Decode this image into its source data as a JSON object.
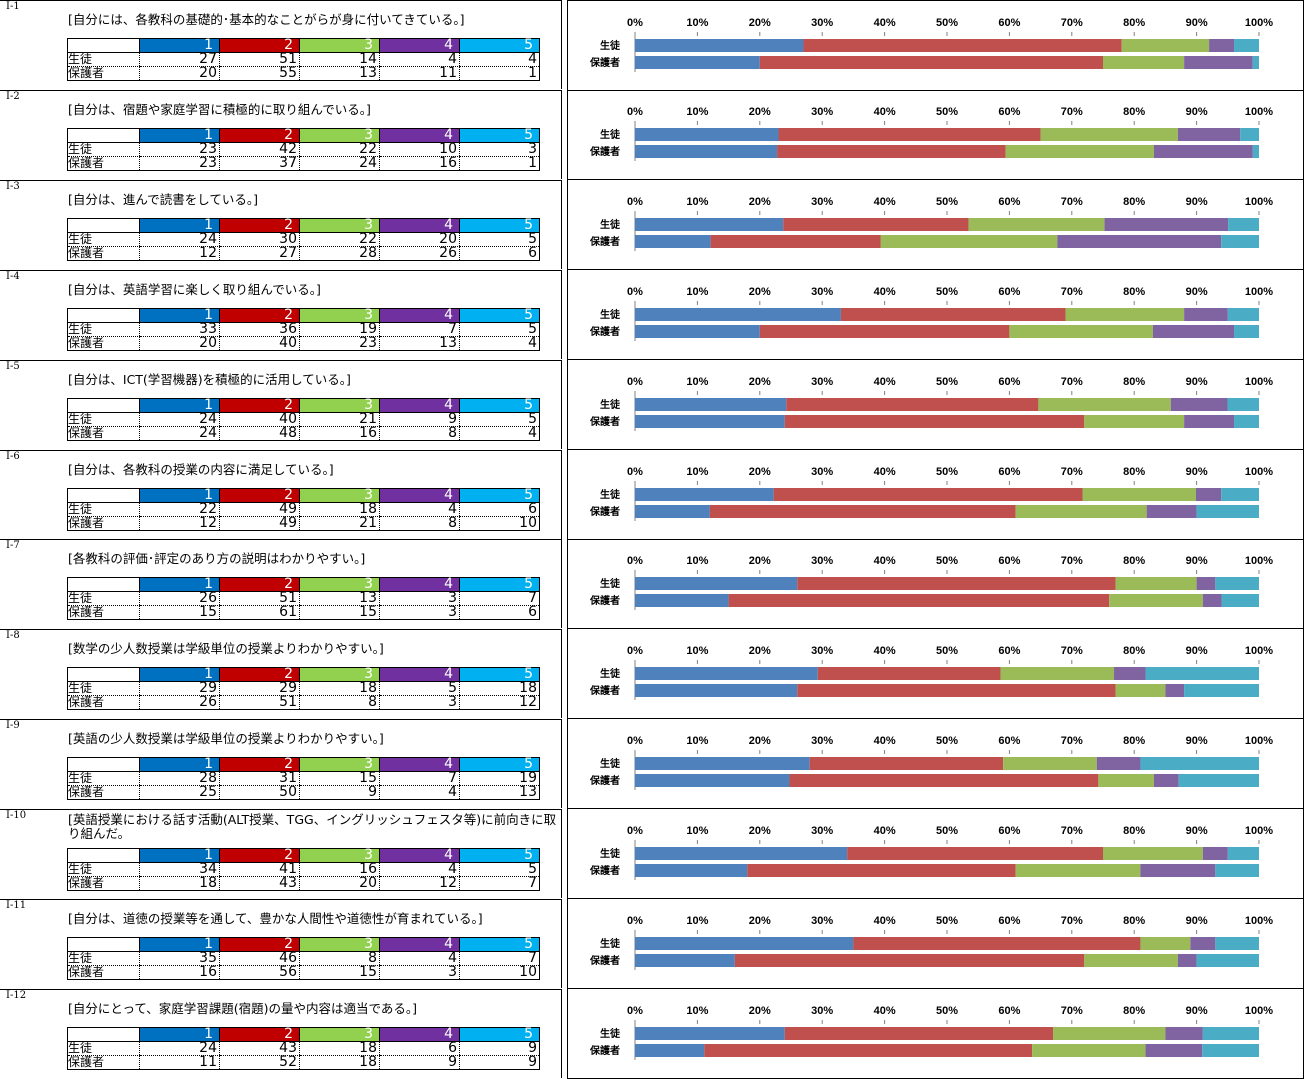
{
  "colors": {
    "c1": "#0070c0",
    "c2": "#c00000",
    "c3": "#92d050",
    "c4": "#7030a0",
    "c5": "#00b0f0",
    "bar1": "#4f81bd",
    "bar2": "#c0504d",
    "bar3": "#9bbb59",
    "bar4": "#8064a2",
    "bar5": "#4bacc6"
  },
  "header_numbers": [
    "1",
    "2",
    "3",
    "4",
    "5"
  ],
  "row_labels": [
    "生徒",
    "保護者"
  ],
  "questions": [
    {
      "id": "Ⅰ-1",
      "text": "[自分には、各教科の基礎的･基本的なことがらが身に付いてきている。]",
      "student": [
        27,
        51,
        14,
        4,
        4
      ],
      "parent": [
        20,
        55,
        13,
        11,
        1
      ]
    },
    {
      "id": "Ⅰ-2",
      "text": "[自分は、宿題や家庭学習に積極的に取り組んでいる。]",
      "student": [
        23,
        42,
        22,
        10,
        3
      ],
      "parent": [
        23,
        37,
        24,
        16,
        1
      ]
    },
    {
      "id": "Ⅰ-3",
      "text": "[自分は、進んで読書をしている。]",
      "student": [
        24,
        30,
        22,
        20,
        5
      ],
      "parent": [
        12,
        27,
        28,
        26,
        6
      ]
    },
    {
      "id": "Ⅰ-4",
      "text": "[自分は、英語学習に楽しく取り組んでいる。]",
      "student": [
        33,
        36,
        19,
        7,
        5
      ],
      "parent": [
        20,
        40,
        23,
        13,
        4
      ]
    },
    {
      "id": "Ⅰ-5",
      "text": "[自分は、ICT(学習機器)を積極的に活用している。]",
      "student": [
        24,
        40,
        21,
        9,
        5
      ],
      "parent": [
        24,
        48,
        16,
        8,
        4
      ]
    },
    {
      "id": "Ⅰ-6",
      "text": "[自分は、各教科の授業の内容に満足している。]",
      "student": [
        22,
        49,
        18,
        4,
        6
      ],
      "parent": [
        12,
        49,
        21,
        8,
        10
      ]
    },
    {
      "id": "Ⅰ-7",
      "text": "[各教科の評価･評定のあり方の説明はわかりやすい。]",
      "student": [
        26,
        51,
        13,
        3,
        7
      ],
      "parent": [
        15,
        61,
        15,
        3,
        6
      ]
    },
    {
      "id": "Ⅰ-8",
      "text": "[数学の少人数授業は学級単位の授業よりわかりやすい。]",
      "student": [
        29,
        29,
        18,
        5,
        18
      ],
      "parent": [
        26,
        51,
        8,
        3,
        12
      ]
    },
    {
      "id": "Ⅰ-9",
      "text": "[英語の少人数授業は学級単位の授業よりわかりやすい。]",
      "student": [
        28,
        31,
        15,
        7,
        19
      ],
      "parent": [
        25,
        50,
        9,
        4,
        13
      ]
    },
    {
      "id": "Ⅰ-10",
      "text": "[英語授業における話す活動(ALT授業、TGG、イングリッシュフェスタ等)に前向きに取り組んだ。",
      "student": [
        34,
        41,
        16,
        4,
        5
      ],
      "parent": [
        18,
        43,
        20,
        12,
        7
      ]
    },
    {
      "id": "Ⅰ-11",
      "text": "[自分は、道徳の授業等を通して、豊かな人間性や道徳性が育まれている。]",
      "student": [
        35,
        46,
        8,
        4,
        7
      ],
      "parent": [
        16,
        56,
        15,
        3,
        10
      ]
    },
    {
      "id": "Ⅰ-12",
      "text": "[自分にとって、家庭学習課題(宿題)の量や内容は適当である。]",
      "student": [
        24,
        43,
        18,
        6,
        9
      ],
      "parent": [
        11,
        52,
        18,
        9,
        9
      ]
    }
  ],
  "chart_data": {
    "type": "bar",
    "orientation": "horizontal",
    "stacked": "percent",
    "x_ticks": [
      "0%",
      "10%",
      "20%",
      "30%",
      "40%",
      "50%",
      "60%",
      "70%",
      "80%",
      "90%",
      "100%"
    ],
    "xlim": [
      0,
      100
    ],
    "categories": [
      "生徒",
      "保護者"
    ],
    "series_keys": [
      "1",
      "2",
      "3",
      "4",
      "5"
    ],
    "note": "one stacked bar chart per question; values are the counts in questions[].student / questions[].parent"
  }
}
